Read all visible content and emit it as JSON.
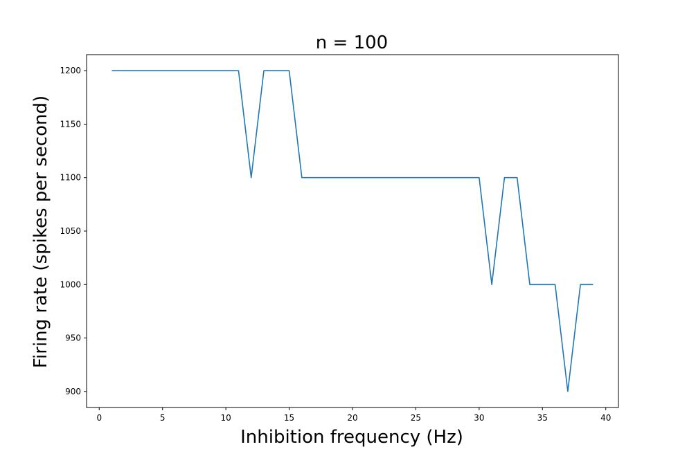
{
  "chart_data": {
    "type": "line",
    "title": "n = 100",
    "xlabel": "Inhibition frequency (Hz)",
    "ylabel": "Firing rate (spikes per second)",
    "xlim": [
      -1,
      41
    ],
    "ylim": [
      885,
      1215
    ],
    "xticks": [
      0,
      5,
      10,
      15,
      20,
      25,
      30,
      35,
      40
    ],
    "yticks": [
      900,
      950,
      1000,
      1050,
      1100,
      1150,
      1200
    ],
    "grid": false,
    "series": [
      {
        "color": "#1f77b4",
        "x": [
          1,
          2,
          3,
          4,
          5,
          6,
          7,
          8,
          9,
          10,
          11,
          12,
          13,
          14,
          15,
          16,
          17,
          18,
          19,
          20,
          21,
          22,
          23,
          24,
          25,
          26,
          27,
          28,
          29,
          30,
          31,
          32,
          33,
          34,
          35,
          36,
          37,
          38,
          39
        ],
        "y": [
          1200,
          1200,
          1200,
          1200,
          1200,
          1200,
          1200,
          1200,
          1200,
          1200,
          1200,
          1100,
          1200,
          1200,
          1200,
          1100,
          1100,
          1100,
          1100,
          1100,
          1100,
          1100,
          1100,
          1100,
          1100,
          1100,
          1100,
          1100,
          1100,
          1100,
          1000,
          1100,
          1100,
          1000,
          1000,
          1000,
          900,
          1000,
          1000
        ]
      }
    ]
  }
}
